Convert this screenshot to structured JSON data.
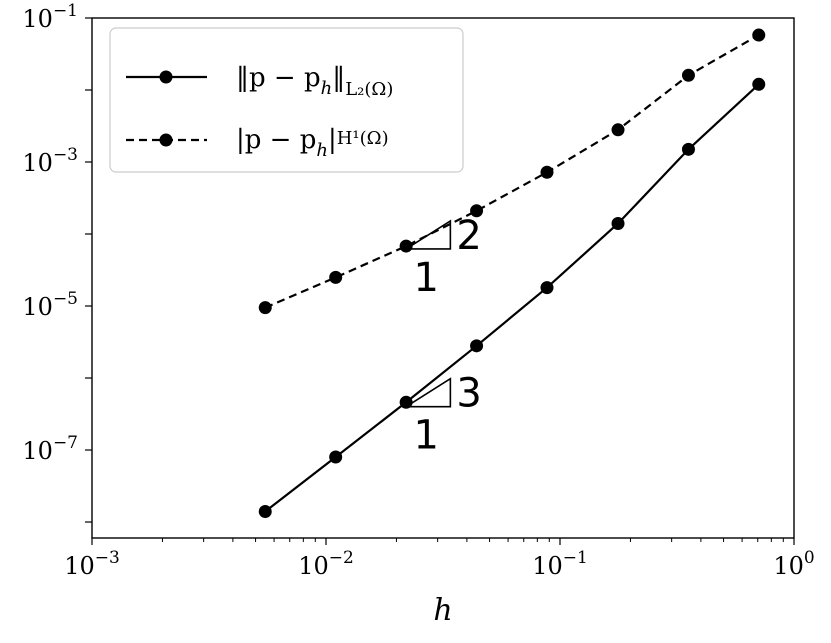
{
  "chart_data": {
    "type": "line",
    "x_scale": "log",
    "y_scale": "log",
    "xlim": [
      0.001,
      1
    ],
    "ylim": [
      6e-09,
      0.1
    ],
    "xlabel": "h",
    "ylabel": "",
    "title": "",
    "grid": false,
    "legend_position": "top-left",
    "x_ticks": [
      {
        "value": 0.001,
        "base": "10",
        "exp": "−3"
      },
      {
        "value": 0.01,
        "base": "10",
        "exp": "−2"
      },
      {
        "value": 0.1,
        "base": "10",
        "exp": "−1"
      },
      {
        "value": 1,
        "base": "10",
        "exp": "0"
      }
    ],
    "y_ticks": [
      {
        "value": 1e-07,
        "base": "10",
        "exp": "−7"
      },
      {
        "value": 1e-05,
        "base": "10",
        "exp": "−5"
      },
      {
        "value": 0.001,
        "base": "10",
        "exp": "−3"
      },
      {
        "value": 0.1,
        "base": "10",
        "exp": "−1"
      }
    ],
    "x": [
      0.0055,
      0.011,
      0.022,
      0.044,
      0.088,
      0.177,
      0.354,
      0.707
    ],
    "series": [
      {
        "name": "‖p − p_h‖_{L_2(Ω)}",
        "legend_main": "‖p − p",
        "legend_sub1": "h",
        "legend_close": "‖",
        "legend_sub2": "L₂(Ω)",
        "line_style": "solid",
        "color": "#000000",
        "values": [
          1.4e-08,
          8e-08,
          4.6e-07,
          2.8e-06,
          1.8e-05,
          0.00014,
          0.0015,
          0.012
        ]
      },
      {
        "name": "|p − p_h|_{H^1(Ω)}",
        "legend_main": "|p − p",
        "legend_sub1": "h",
        "legend_close": "|",
        "legend_sub2": "H¹(Ω)",
        "line_style": "dashed",
        "color": "#000000",
        "values": [
          9.5e-06,
          2.5e-05,
          6.8e-05,
          0.00021,
          0.00072,
          0.0028,
          0.016,
          0.058
        ]
      }
    ],
    "annotations": [
      {
        "type": "slope_triangle",
        "rise": "2",
        "run": "1",
        "x_start": 0.022,
        "x_end": 0.034,
        "y_base": 6.2e-05
      },
      {
        "type": "slope_triangle",
        "rise": "3",
        "run": "1",
        "x_start": 0.022,
        "x_end": 0.034,
        "y_base": 4e-07
      }
    ]
  }
}
